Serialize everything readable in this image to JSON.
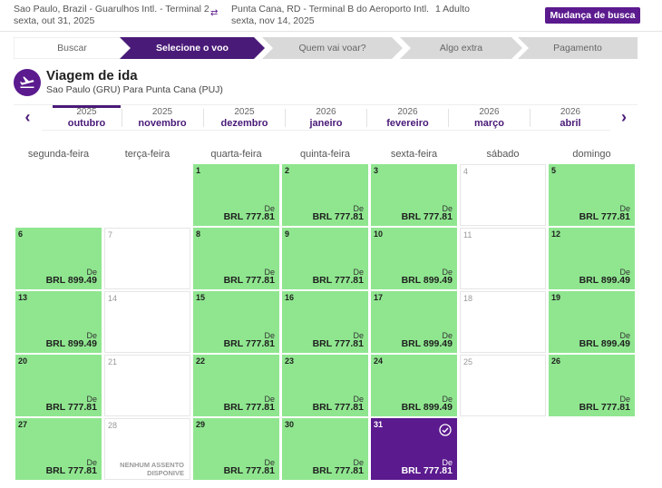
{
  "header": {
    "origin": "Sao Paulo, Brazil - Guarulhos Intl. - Terminal 2",
    "depart_date": "sexta, out 31, 2025",
    "destination": "Punta Cana, RD - Terminal B do Aeroporto Intl.",
    "return_date": "sexta, nov 14, 2025",
    "passengers": "1 Adulto",
    "swap_glyph": "⇄",
    "change_search_label": "Mudança de busca"
  },
  "steps": [
    "Buscar",
    "Selecione o voo",
    "Quem vai voar?",
    "Algo extra",
    "Pagamento"
  ],
  "trip": {
    "title": "Viagem de ida",
    "route": "Sao Paulo (GRU) Para Punta Cana (PUJ)",
    "icon": "airplane-icon"
  },
  "months": [
    {
      "year": "2025",
      "month": "outubro"
    },
    {
      "year": "2025",
      "month": "novembro"
    },
    {
      "year": "2025",
      "month": "dezembro"
    },
    {
      "year": "2026",
      "month": "janeiro"
    },
    {
      "year": "2026",
      "month": "fevereiro"
    },
    {
      "year": "2026",
      "month": "março"
    },
    {
      "year": "2026",
      "month": "abril"
    }
  ],
  "nav": {
    "prev": "‹",
    "next": "›"
  },
  "weekdays": [
    "segunda-feira",
    "terça-feira",
    "quarta-feira",
    "quinta-feira",
    "sexta-feira",
    "sábado",
    "domingo"
  ],
  "labels": {
    "from": "De",
    "unavailable": "NENHUM ASSENTO DISPONIVE"
  },
  "days": [
    {
      "n": "1",
      "price": "BRL 777.81",
      "status": "available"
    },
    {
      "n": "2",
      "price": "BRL 777.81",
      "status": "available"
    },
    {
      "n": "3",
      "price": "BRL 777.81",
      "status": "available"
    },
    {
      "n": "4",
      "price": "",
      "status": "none"
    },
    {
      "n": "5",
      "price": "BRL 777.81",
      "status": "available"
    },
    {
      "n": "6",
      "price": "BRL 899.49",
      "status": "available"
    },
    {
      "n": "7",
      "price": "",
      "status": "none"
    },
    {
      "n": "8",
      "price": "BRL 777.81",
      "status": "available"
    },
    {
      "n": "9",
      "price": "BRL 777.81",
      "status": "available"
    },
    {
      "n": "10",
      "price": "BRL 899.49",
      "status": "available"
    },
    {
      "n": "11",
      "price": "",
      "status": "none"
    },
    {
      "n": "12",
      "price": "BRL 899.49",
      "status": "available"
    },
    {
      "n": "13",
      "price": "BRL 899.49",
      "status": "available"
    },
    {
      "n": "14",
      "price": "",
      "status": "none"
    },
    {
      "n": "15",
      "price": "BRL 777.81",
      "status": "available"
    },
    {
      "n": "16",
      "price": "BRL 777.81",
      "status": "available"
    },
    {
      "n": "17",
      "price": "BRL 899.49",
      "status": "available"
    },
    {
      "n": "18",
      "price": "",
      "status": "none"
    },
    {
      "n": "19",
      "price": "BRL 899.49",
      "status": "available"
    },
    {
      "n": "20",
      "price": "BRL 777.81",
      "status": "available"
    },
    {
      "n": "21",
      "price": "",
      "status": "none"
    },
    {
      "n": "22",
      "price": "BRL 777.81",
      "status": "available"
    },
    {
      "n": "23",
      "price": "BRL 777.81",
      "status": "available"
    },
    {
      "n": "24",
      "price": "BRL 899.49",
      "status": "available"
    },
    {
      "n": "25",
      "price": "",
      "status": "none"
    },
    {
      "n": "26",
      "price": "BRL 777.81",
      "status": "available"
    },
    {
      "n": "27",
      "price": "BRL 777.81",
      "status": "available"
    },
    {
      "n": "28",
      "price": "",
      "status": "soldout"
    },
    {
      "n": "29",
      "price": "BRL 777.81",
      "status": "available"
    },
    {
      "n": "30",
      "price": "BRL 777.81",
      "status": "available"
    },
    {
      "n": "31",
      "price": "BRL 777.81",
      "status": "selected"
    }
  ],
  "colors": {
    "brand": "#5b1a8e",
    "available": "#8fe68f",
    "step_active": "#4a1a78",
    "step_inactive": "#d9d9d9"
  }
}
